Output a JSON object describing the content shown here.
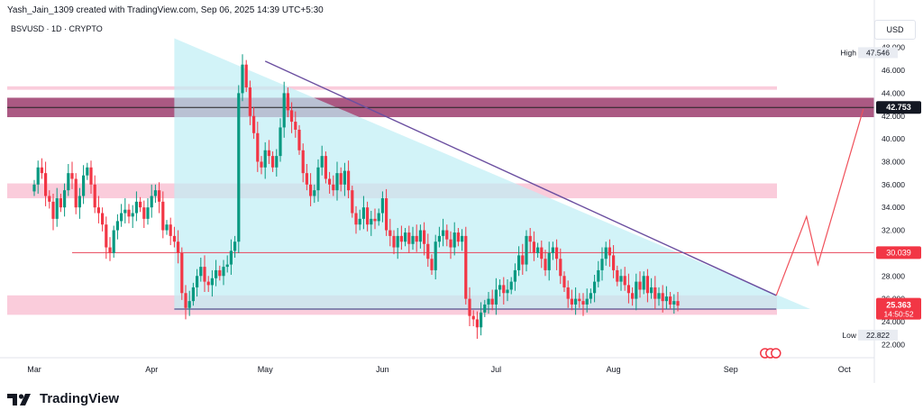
{
  "header": {
    "attribution": "Yash_Jain_1309 created with TradingView.com, Sep 06, 2025 14:39 UTC+5:30"
  },
  "symbol": {
    "label": "BSVUSD · 1D · CRYPTO"
  },
  "currency": "USD",
  "brand": {
    "name": "TradingView"
  },
  "colors": {
    "up": "#089981",
    "down": "#f23645",
    "triangle": "#bfeef5",
    "pink": "#f8bbcf",
    "purple": "#9c3c6d",
    "line": "#6b4fa0"
  },
  "chart_data": {
    "type": "candlestick",
    "symbol": "BSVUSD",
    "interval": "1D",
    "exchange": "CRYPTO",
    "ylim": [
      21,
      49
    ],
    "y_ticks": [
      22,
      24,
      26,
      28,
      30,
      32,
      34,
      36,
      38,
      40,
      42,
      44,
      46,
      48
    ],
    "y_tick_labels": [
      "22.000",
      "24.000",
      "26.000",
      "28.000",
      "30.000",
      "32.000",
      "34.000",
      "36.000",
      "38.000",
      "40.000",
      "42.000",
      "44.000",
      "46.000",
      "48.000"
    ],
    "x_ticks": [
      {
        "label": "Mar",
        "day": 0
      },
      {
        "label": "Apr",
        "day": 31
      },
      {
        "label": "May",
        "day": 61
      },
      {
        "label": "Jun",
        "day": 92
      },
      {
        "label": "Jul",
        "day": 122
      },
      {
        "label": "Aug",
        "day": 153
      },
      {
        "label": "Sep",
        "day": 184
      },
      {
        "label": "Oct",
        "day": 214
      }
    ],
    "price_labels": {
      "high": {
        "label": "High",
        "value": "47.546"
      },
      "level_top": {
        "value": "42.753"
      },
      "level_mid": {
        "value": "30.039"
      },
      "last": {
        "value": "25.363",
        "countdown": "14:50:52"
      },
      "low": {
        "label": "Low",
        "value": "22.822"
      }
    },
    "levels": {
      "top_line": 42.75,
      "mid_line": 30.04,
      "support_line": 25.1
    },
    "zones": [
      {
        "name": "top-purple",
        "from": 41.9,
        "to": 43.6
      },
      {
        "name": "top-pink-thin",
        "from": 44.3,
        "to": 44.6
      },
      {
        "name": "mid-pink",
        "from": 34.8,
        "to": 36.1
      },
      {
        "name": "low-pink",
        "from": 24.6,
        "to": 26.3
      }
    ],
    "triangle": {
      "top_day": 37,
      "top_price": 48.8,
      "apex_day": 205,
      "apex_price": 25.1,
      "base_price": 25.0
    },
    "trendline": {
      "from_day": 61,
      "from_price": 46.8,
      "to_day": 196,
      "to_price": 26.3
    },
    "projection": [
      [
        196,
        26.3
      ],
      [
        204,
        33.2
      ],
      [
        207,
        29.0
      ],
      [
        219,
        42.6
      ]
    ],
    "closes": [
      36.0,
      37.5,
      37.0,
      35.0,
      34.5,
      33.0,
      34.8,
      34.0,
      35.5,
      37.0,
      36.5,
      34.0,
      35.0,
      36.8,
      37.5,
      36.0,
      34.0,
      33.5,
      32.5,
      30.5,
      30.0,
      32.0,
      32.8,
      33.5,
      33.8,
      33.2,
      33.5,
      34.5,
      34.0,
      33.0,
      34.0,
      35.0,
      35.5,
      34.5,
      32.0,
      32.5,
      31.5,
      31.0,
      30.0,
      26.5,
      25.2,
      25.8,
      27.0,
      28.0,
      28.8,
      27.5,
      27.2,
      27.8,
      28.5,
      28.0,
      28.8,
      29.0,
      30.2,
      31.0,
      44.0,
      46.5,
      44.5,
      42.0,
      40.5,
      38.0,
      37.5,
      39.0,
      38.5,
      37.5,
      38.5,
      41.0,
      44.0,
      42.5,
      41.5,
      40.8,
      39.0,
      37.0,
      36.0,
      35.0,
      35.5,
      37.5,
      38.5,
      36.5,
      36.0,
      35.5,
      37.0,
      36.0,
      37.2,
      35.5,
      33.5,
      32.5,
      33.0,
      34.0,
      32.5,
      33.0,
      32.8,
      33.5,
      34.8,
      32.0,
      31.5,
      30.5,
      31.5,
      31.0,
      31.8,
      30.8,
      31.5,
      31.0,
      32.0,
      30.8,
      29.5,
      28.5,
      31.0,
      31.5,
      32.0,
      31.2,
      30.5,
      31.8,
      31.0,
      31.5,
      26.0,
      24.5,
      24.2,
      23.5,
      24.8,
      25.5,
      26.0,
      25.5,
      26.8,
      27.2,
      26.5,
      26.8,
      27.5,
      28.5,
      29.8,
      29.0,
      31.5,
      31.0,
      30.0,
      30.5,
      29.5,
      28.5,
      30.0,
      30.5,
      29.5,
      28.0,
      27.0,
      26.0,
      25.5,
      26.0,
      25.8,
      25.5,
      26.0,
      26.5,
      27.5,
      28.5,
      29.5,
      30.5,
      29.8,
      28.5,
      27.5,
      28.0,
      27.2,
      26.5,
      26.0,
      27.5,
      26.8,
      28.0,
      26.5,
      27.0,
      26.0,
      26.5,
      25.8,
      26.2,
      25.5,
      25.8,
      25.4
    ],
    "title": "BSVUSD · 1D · CRYPTO",
    "xlabel": "",
    "ylabel": "USD"
  }
}
